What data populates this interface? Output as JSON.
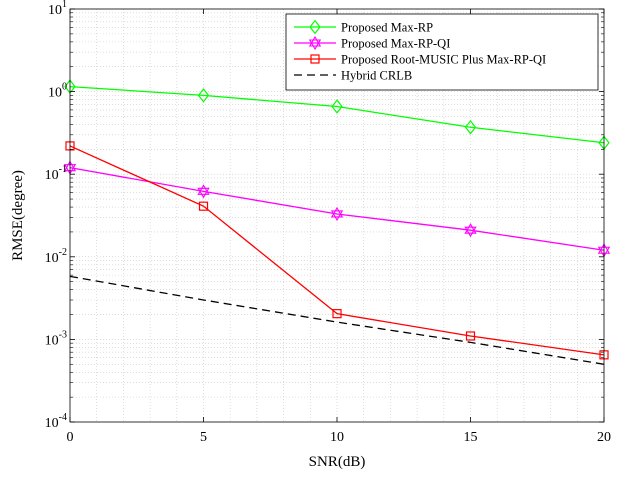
{
  "chart_data": {
    "type": "line",
    "xlabel": "SNR(dB)",
    "ylabel": "RMSE(degree)",
    "x": [
      0,
      5,
      10,
      15,
      20
    ],
    "xlim": [
      0,
      20
    ],
    "ylim": [
      0.0001,
      10
    ],
    "yscale": "log",
    "x_ticks": [
      "0",
      "5",
      "10",
      "15",
      "20"
    ],
    "y_ticks": [
      {
        "base": "10",
        "exp": "-4",
        "value": 0.0001
      },
      {
        "base": "10",
        "exp": "-3",
        "value": 0.001
      },
      {
        "base": "10",
        "exp": "-2",
        "value": 0.01
      },
      {
        "base": "10",
        "exp": "-1",
        "value": 0.1
      },
      {
        "base": "10",
        "exp": "0",
        "value": 1
      },
      {
        "base": "10",
        "exp": "1",
        "value": 10
      }
    ],
    "grid": true,
    "legend_position": "top-right",
    "series": [
      {
        "name": "Proposed Max-RP",
        "color": "#00ff00",
        "marker": "diamond",
        "dash": "solid",
        "values": [
          1.15,
          0.9,
          0.66,
          0.37,
          0.24
        ]
      },
      {
        "name": "Proposed Max-RP-QI",
        "color": "#ff00ff",
        "marker": "hexagram",
        "dash": "solid",
        "values": [
          0.12,
          0.062,
          0.033,
          0.021,
          0.012
        ]
      },
      {
        "name": "Proposed Root-MUSIC Plus Max-RP-QI",
        "color": "#ff0000",
        "marker": "square",
        "dash": "solid",
        "values": [
          0.22,
          0.041,
          0.00205,
          0.0011,
          0.00065
        ]
      },
      {
        "name": "Hybrid CRLB",
        "color": "#000000",
        "marker": "none",
        "dash": "dashed",
        "values": [
          0.0058,
          0.003,
          0.00162,
          0.00092,
          0.0005
        ]
      }
    ]
  }
}
